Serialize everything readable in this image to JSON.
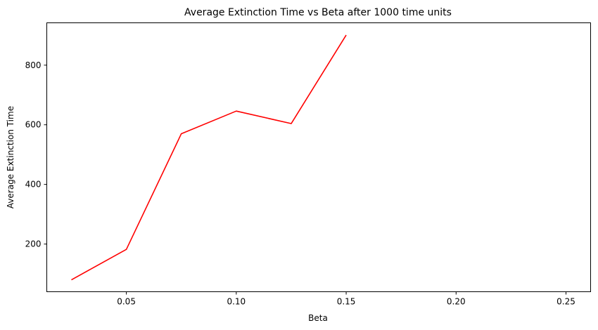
{
  "chart_data": {
    "type": "line",
    "title": "Average Extinction Time vs Beta after 1000 time units",
    "xlabel": "Beta",
    "ylabel": "Average Extinction Time",
    "xlim": [
      0.0138,
      0.2612
    ],
    "ylim": [
      40,
      942
    ],
    "x_ticks": [
      0.05,
      0.1,
      0.15,
      0.2,
      0.25
    ],
    "x_tick_labels": [
      "0.05",
      "0.10",
      "0.15",
      "0.20",
      "0.25"
    ],
    "y_ticks": [
      200,
      400,
      600,
      800
    ],
    "y_tick_labels": [
      "200",
      "400",
      "600",
      "800"
    ],
    "grid": false,
    "series": [
      {
        "color": "#ff0000",
        "x": [
          0.025,
          0.05,
          0.075,
          0.1,
          0.125,
          0.15
        ],
        "y": [
          80,
          182,
          570,
          646,
          604,
          901
        ]
      }
    ]
  }
}
